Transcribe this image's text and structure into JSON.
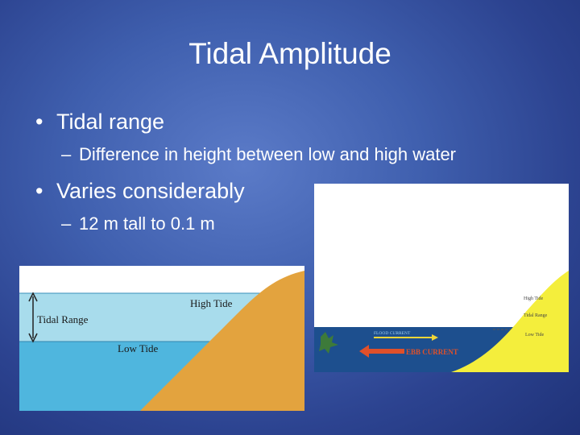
{
  "slide": {
    "title": "Tidal Amplitude",
    "bullets": [
      {
        "text": "Tidal range",
        "sub": "Difference in height between low and high water"
      },
      {
        "text": "Varies considerably",
        "sub": "12 m tall to 0.1 m"
      }
    ],
    "bullet_glyph": "•",
    "sub_glyph": "–"
  },
  "figure_left": {
    "high_tide": "High Tide",
    "tidal_range": "Tidal Range",
    "low_tide": "Low Tide"
  },
  "figure_right": {
    "high_tide": "High Tide",
    "tidal_range": "Tidal Range",
    "low_tide": "Low Tide",
    "flood_current": "FLOOD CURRENT",
    "ebb_current": "EBB CURRENT"
  },
  "colors": {
    "background": "#3f5fae",
    "sky": "#ffffff",
    "water_high": "#a8dcec",
    "water_low": "#4fb6de",
    "sand": "#e3a33e",
    "sea_dark": "#1d4f8e",
    "sand_yellow": "#f4ee3c",
    "ebb_arrow": "#e0502a",
    "flood_arrow": "#f0d638"
  }
}
